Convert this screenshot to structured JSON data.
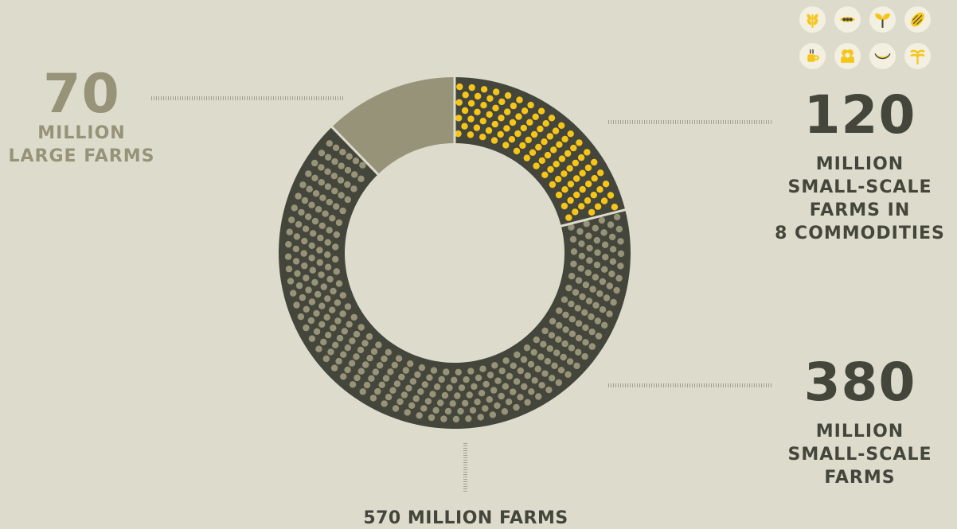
{
  "chart_data": {
    "type": "pie",
    "style": "donut",
    "total_label": "570 MILLION FARMS",
    "slices": [
      {
        "key": "small_scale_8_commodities",
        "value": 120,
        "number": "120",
        "label_lines": [
          "MILLION",
          "SMALL-SCALE",
          "FARMS IN",
          "8 COMMODITIES"
        ],
        "color": "#45463b",
        "dot_color": "#f5c518"
      },
      {
        "key": "small_scale_other",
        "value": 380,
        "number": "380",
        "label_lines": [
          "MILLION",
          "SMALL-SCALE",
          "FARMS"
        ],
        "color": "#45463b",
        "dot_color": "#979378"
      },
      {
        "key": "large_farms",
        "value": 70,
        "number": "70",
        "label_lines": [
          "MILLION",
          "LARGE FARMS"
        ],
        "color": "#979378"
      }
    ]
  },
  "colors": {
    "background": "#dcdbcc",
    "dark": "#45463b",
    "olive": "#979378",
    "yellow": "#f5c518",
    "icon_bg": "#f4f0e1"
  },
  "icons": [
    "wheat-icon",
    "soybean-icon",
    "sprout-icon",
    "cocoa-pod-icon",
    "coffee-icon",
    "cotton-icon",
    "banana-icon",
    "rice-icon"
  ]
}
